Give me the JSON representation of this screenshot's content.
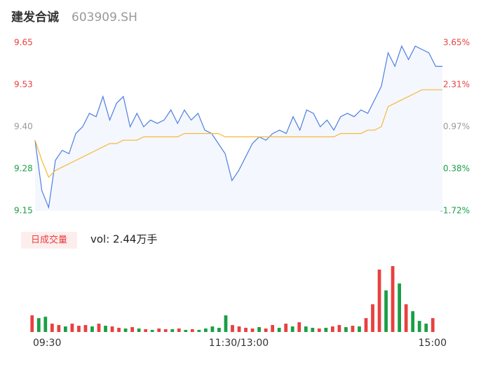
{
  "header": {
    "name": "建发合诚",
    "code": "603909.SH"
  },
  "chart_data": [
    {
      "type": "line",
      "ylim": [
        9.15,
        9.65
      ],
      "yticks": [
        9.65,
        {
          "value": 9.525,
          "label": "9.53"
        },
        {
          "value": 9.4,
          "label": "9.40"
        },
        {
          "value": 9.275,
          "label": "9.28"
        },
        9.15
      ],
      "y2lim": [
        -1.72,
        3.65
      ],
      "y2ticks": [
        {
          "value": 3.65,
          "label": "3.65%"
        },
        {
          "value": 2.31,
          "label": "2.31%"
        },
        {
          "value": 0.97,
          "label": "0.97%"
        },
        {
          "value": -0.38,
          "label": "-0.38%"
        },
        {
          "value": -1.72,
          "label": "-1.72%"
        }
      ],
      "tick_colors": [
        "#e8403f",
        "#e8403f",
        "#999999",
        "#1a9e45",
        "#1a9e45"
      ],
      "xlim": [
        0,
        240
      ],
      "xticks": [
        {
          "value": 0,
          "label": "09:30"
        },
        {
          "value": 120,
          "label": "11:30/13:00"
        },
        {
          "value": 240,
          "label": "15:00"
        }
      ],
      "series": [
        {
          "name": "price",
          "color": "#4e7fe0",
          "fill": "#f4f7fd",
          "values": [
            9.36,
            9.21,
            9.16,
            9.3,
            9.33,
            9.32,
            9.38,
            9.4,
            9.44,
            9.43,
            9.49,
            9.42,
            9.47,
            9.49,
            9.4,
            9.44,
            9.4,
            9.42,
            9.41,
            9.42,
            9.45,
            9.41,
            9.45,
            9.42,
            9.44,
            9.39,
            9.38,
            9.35,
            9.32,
            9.24,
            9.27,
            9.31,
            9.35,
            9.37,
            9.36,
            9.38,
            9.39,
            9.38,
            9.43,
            9.39,
            9.45,
            9.44,
            9.4,
            9.42,
            9.39,
            9.43,
            9.44,
            9.43,
            9.45,
            9.44,
            9.48,
            9.52,
            9.62,
            9.58,
            9.64,
            9.6,
            9.64,
            9.63,
            9.62,
            9.58,
            9.58
          ]
        },
        {
          "name": "average",
          "color": "#f5b93c",
          "values": [
            9.36,
            9.3,
            9.25,
            9.27,
            9.28,
            9.29,
            9.3,
            9.31,
            9.32,
            9.33,
            9.34,
            9.35,
            9.35,
            9.36,
            9.36,
            9.36,
            9.37,
            9.37,
            9.37,
            9.37,
            9.37,
            9.37,
            9.38,
            9.38,
            9.38,
            9.38,
            9.38,
            9.38,
            9.37,
            9.37,
            9.37,
            9.37,
            9.37,
            9.37,
            9.37,
            9.37,
            9.37,
            9.37,
            9.37,
            9.37,
            9.37,
            9.37,
            9.37,
            9.37,
            9.37,
            9.38,
            9.38,
            9.38,
            9.38,
            9.39,
            9.39,
            9.4,
            9.46,
            9.47,
            9.48,
            9.49,
            9.5,
            9.51,
            9.51,
            9.51,
            9.51
          ]
        }
      ]
    },
    {
      "type": "bar",
      "legend": "日成交量",
      "label": "vol: 2.44万手",
      "color_up": "#e8403f",
      "color_down": "#1a9e45",
      "ylim": [
        0,
        100
      ],
      "values": [
        24,
        20,
        22,
        12,
        10,
        8,
        12,
        9,
        10,
        8,
        12,
        9,
        8,
        6,
        5,
        7,
        5,
        4,
        3,
        5,
        4,
        4,
        5,
        3,
        4,
        3,
        5,
        8,
        6,
        24,
        10,
        8,
        6,
        5,
        7,
        5,
        10,
        6,
        12,
        8,
        14,
        8,
        6,
        5,
        6,
        8,
        10,
        7,
        9,
        8,
        20,
        40,
        90,
        60,
        95,
        70,
        40,
        30,
        16,
        12,
        20
      ]
    }
  ]
}
